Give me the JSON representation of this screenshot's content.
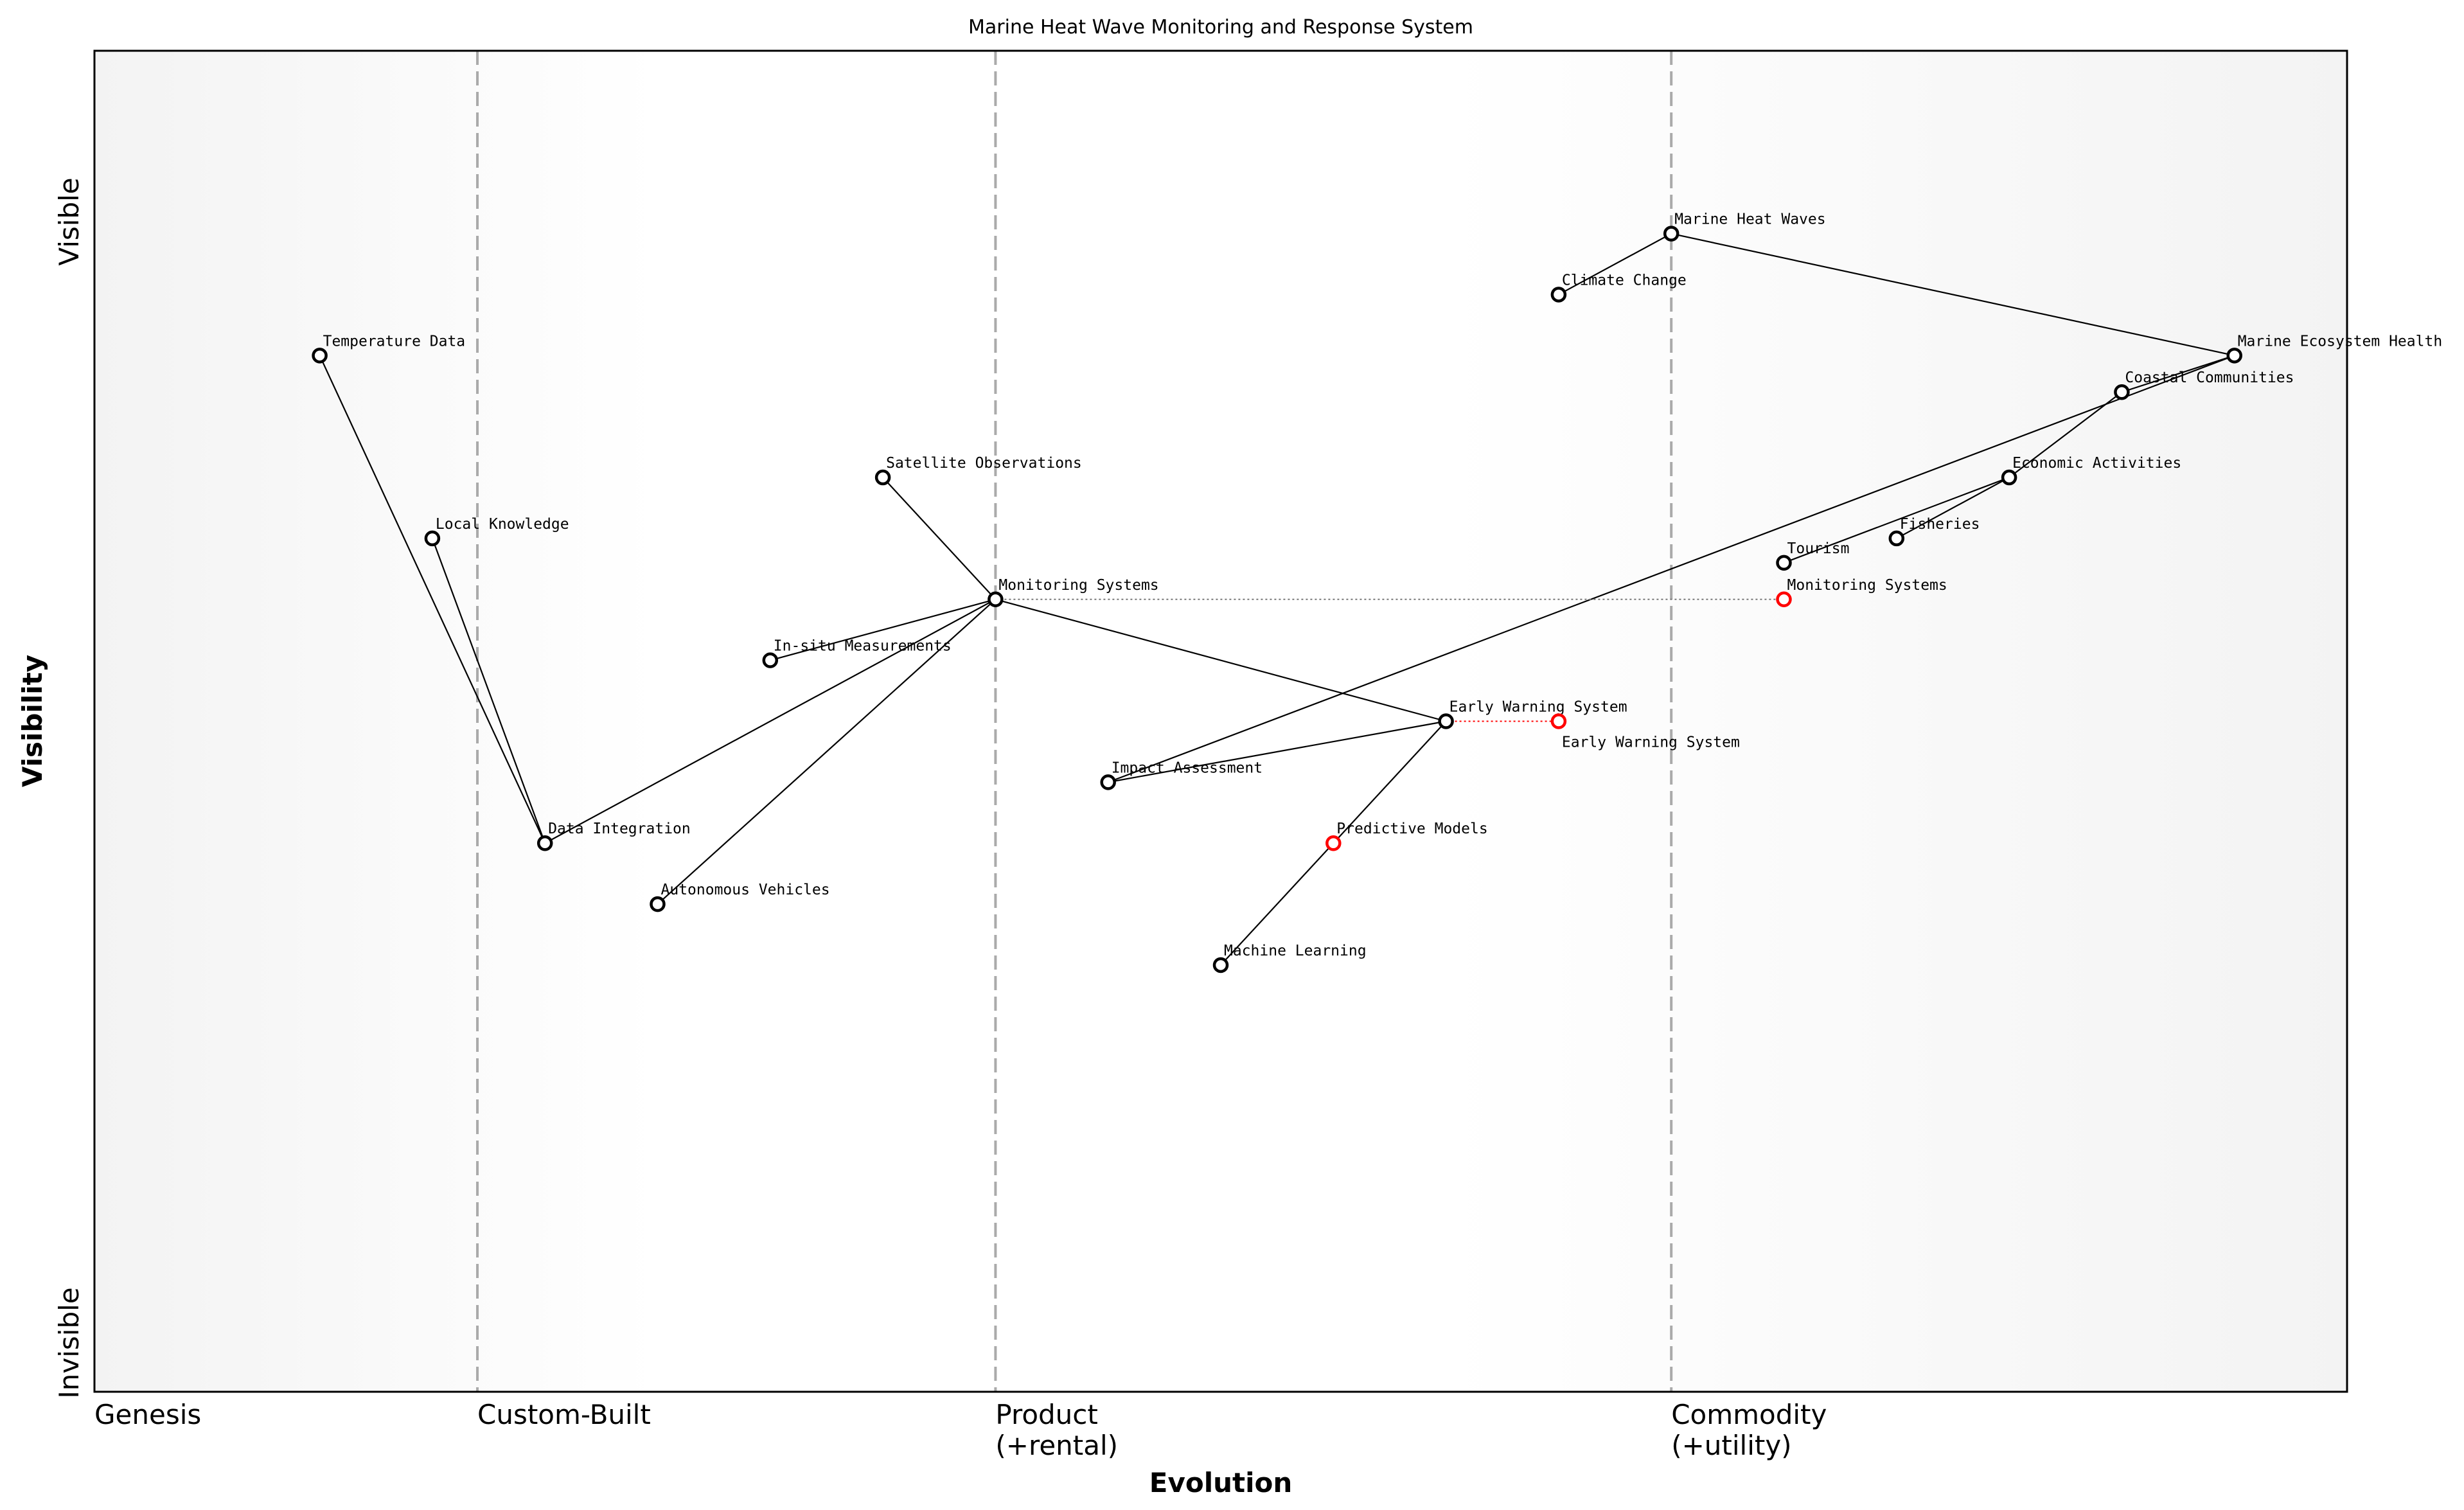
{
  "chart_data": {
    "type": "scatter",
    "title": "Marine Heat Wave Monitoring and Response System",
    "xlabel": "Evolution",
    "ylabel": "Visibility",
    "xlim": [
      0,
      1
    ],
    "ylim": [
      0,
      1.1
    ],
    "grid": false,
    "x_stages": [
      {
        "label": "Genesis",
        "x": 0,
        "line": false
      },
      {
        "label": "Custom-Built",
        "x": 0.17,
        "line": true
      },
      {
        "label": "Product\n(+rental)",
        "x": 0.4,
        "line": true
      },
      {
        "label": "Commodity\n(+utility)",
        "x": 0.7,
        "line": true
      }
    ],
    "y_labels": {
      "top": "Visible",
      "bottom": "Invisible"
    },
    "colors": {
      "node": "#000000",
      "evolved": "#ff0000",
      "stage_line": "#aaaaaa",
      "background_edge": "#f3f3f3",
      "background_mid": "#ffffff"
    },
    "nodes": [
      {
        "name": "Marine Heat Waves",
        "x": 0.7,
        "y": 0.95
      },
      {
        "name": "Climate Change",
        "x": 0.65,
        "y": 0.9
      },
      {
        "name": "Temperature Data",
        "x": 0.1,
        "y": 0.85
      },
      {
        "name": "Marine Ecosystem Health",
        "x": 0.95,
        "y": 0.85
      },
      {
        "name": "Coastal Communities",
        "x": 0.9,
        "y": 0.82
      },
      {
        "name": "Satellite Observations",
        "x": 0.35,
        "y": 0.75
      },
      {
        "name": "Economic Activities",
        "x": 0.85,
        "y": 0.75
      },
      {
        "name": "Local Knowledge",
        "x": 0.15,
        "y": 0.7
      },
      {
        "name": "Fisheries",
        "x": 0.8,
        "y": 0.7
      },
      {
        "name": "Tourism",
        "x": 0.75,
        "y": 0.68
      },
      {
        "name": "Monitoring Systems",
        "x": 0.4,
        "y": 0.65
      },
      {
        "name": "In-situ Measurements",
        "x": 0.3,
        "y": 0.6
      },
      {
        "name": "Early Warning System",
        "x": 0.6,
        "y": 0.55
      },
      {
        "name": "Impact Assessment",
        "x": 0.45,
        "y": 0.5
      },
      {
        "name": "Data Integration",
        "x": 0.2,
        "y": 0.45
      },
      {
        "name": "Autonomous Vehicles",
        "x": 0.25,
        "y": 0.4
      },
      {
        "name": "Machine Learning",
        "x": 0.5,
        "y": 0.35
      }
    ],
    "evolved_nodes": [
      {
        "name": "Monitoring Systems",
        "x": 0.75,
        "y": 0.65,
        "from_x": 0.4
      },
      {
        "name": "Early Warning System",
        "x": 0.65,
        "y": 0.55,
        "from_x": 0.6
      },
      {
        "name": "Predictive Models",
        "x": 0.55,
        "y": 0.45
      }
    ],
    "links": [
      [
        "Marine Heat Waves",
        "Climate Change"
      ],
      [
        "Marine Heat Waves",
        "Marine Ecosystem Health"
      ],
      [
        "Marine Ecosystem Health",
        "Coastal Communities"
      ],
      [
        "Marine Ecosystem Health",
        "Impact Assessment"
      ],
      [
        "Coastal Communities",
        "Economic Activities"
      ],
      [
        "Economic Activities",
        "Tourism"
      ],
      [
        "Economic Activities",
        "Fisheries"
      ],
      [
        "Temperature Data",
        "Data Integration"
      ],
      [
        "Local Knowledge",
        "Data Integration"
      ],
      [
        "Data Integration",
        "Monitoring Systems"
      ],
      [
        "Satellite Observations",
        "Monitoring Systems"
      ],
      [
        "In-situ Measurements",
        "Monitoring Systems"
      ],
      [
        "Autonomous Vehicles",
        "Monitoring Systems"
      ],
      [
        "Monitoring Systems",
        "Early Warning System"
      ],
      [
        "Early Warning System",
        "Impact Assessment"
      ],
      [
        "Early Warning System",
        "Predictive Models"
      ],
      [
        "Predictive Models",
        "Machine Learning"
      ]
    ]
  }
}
